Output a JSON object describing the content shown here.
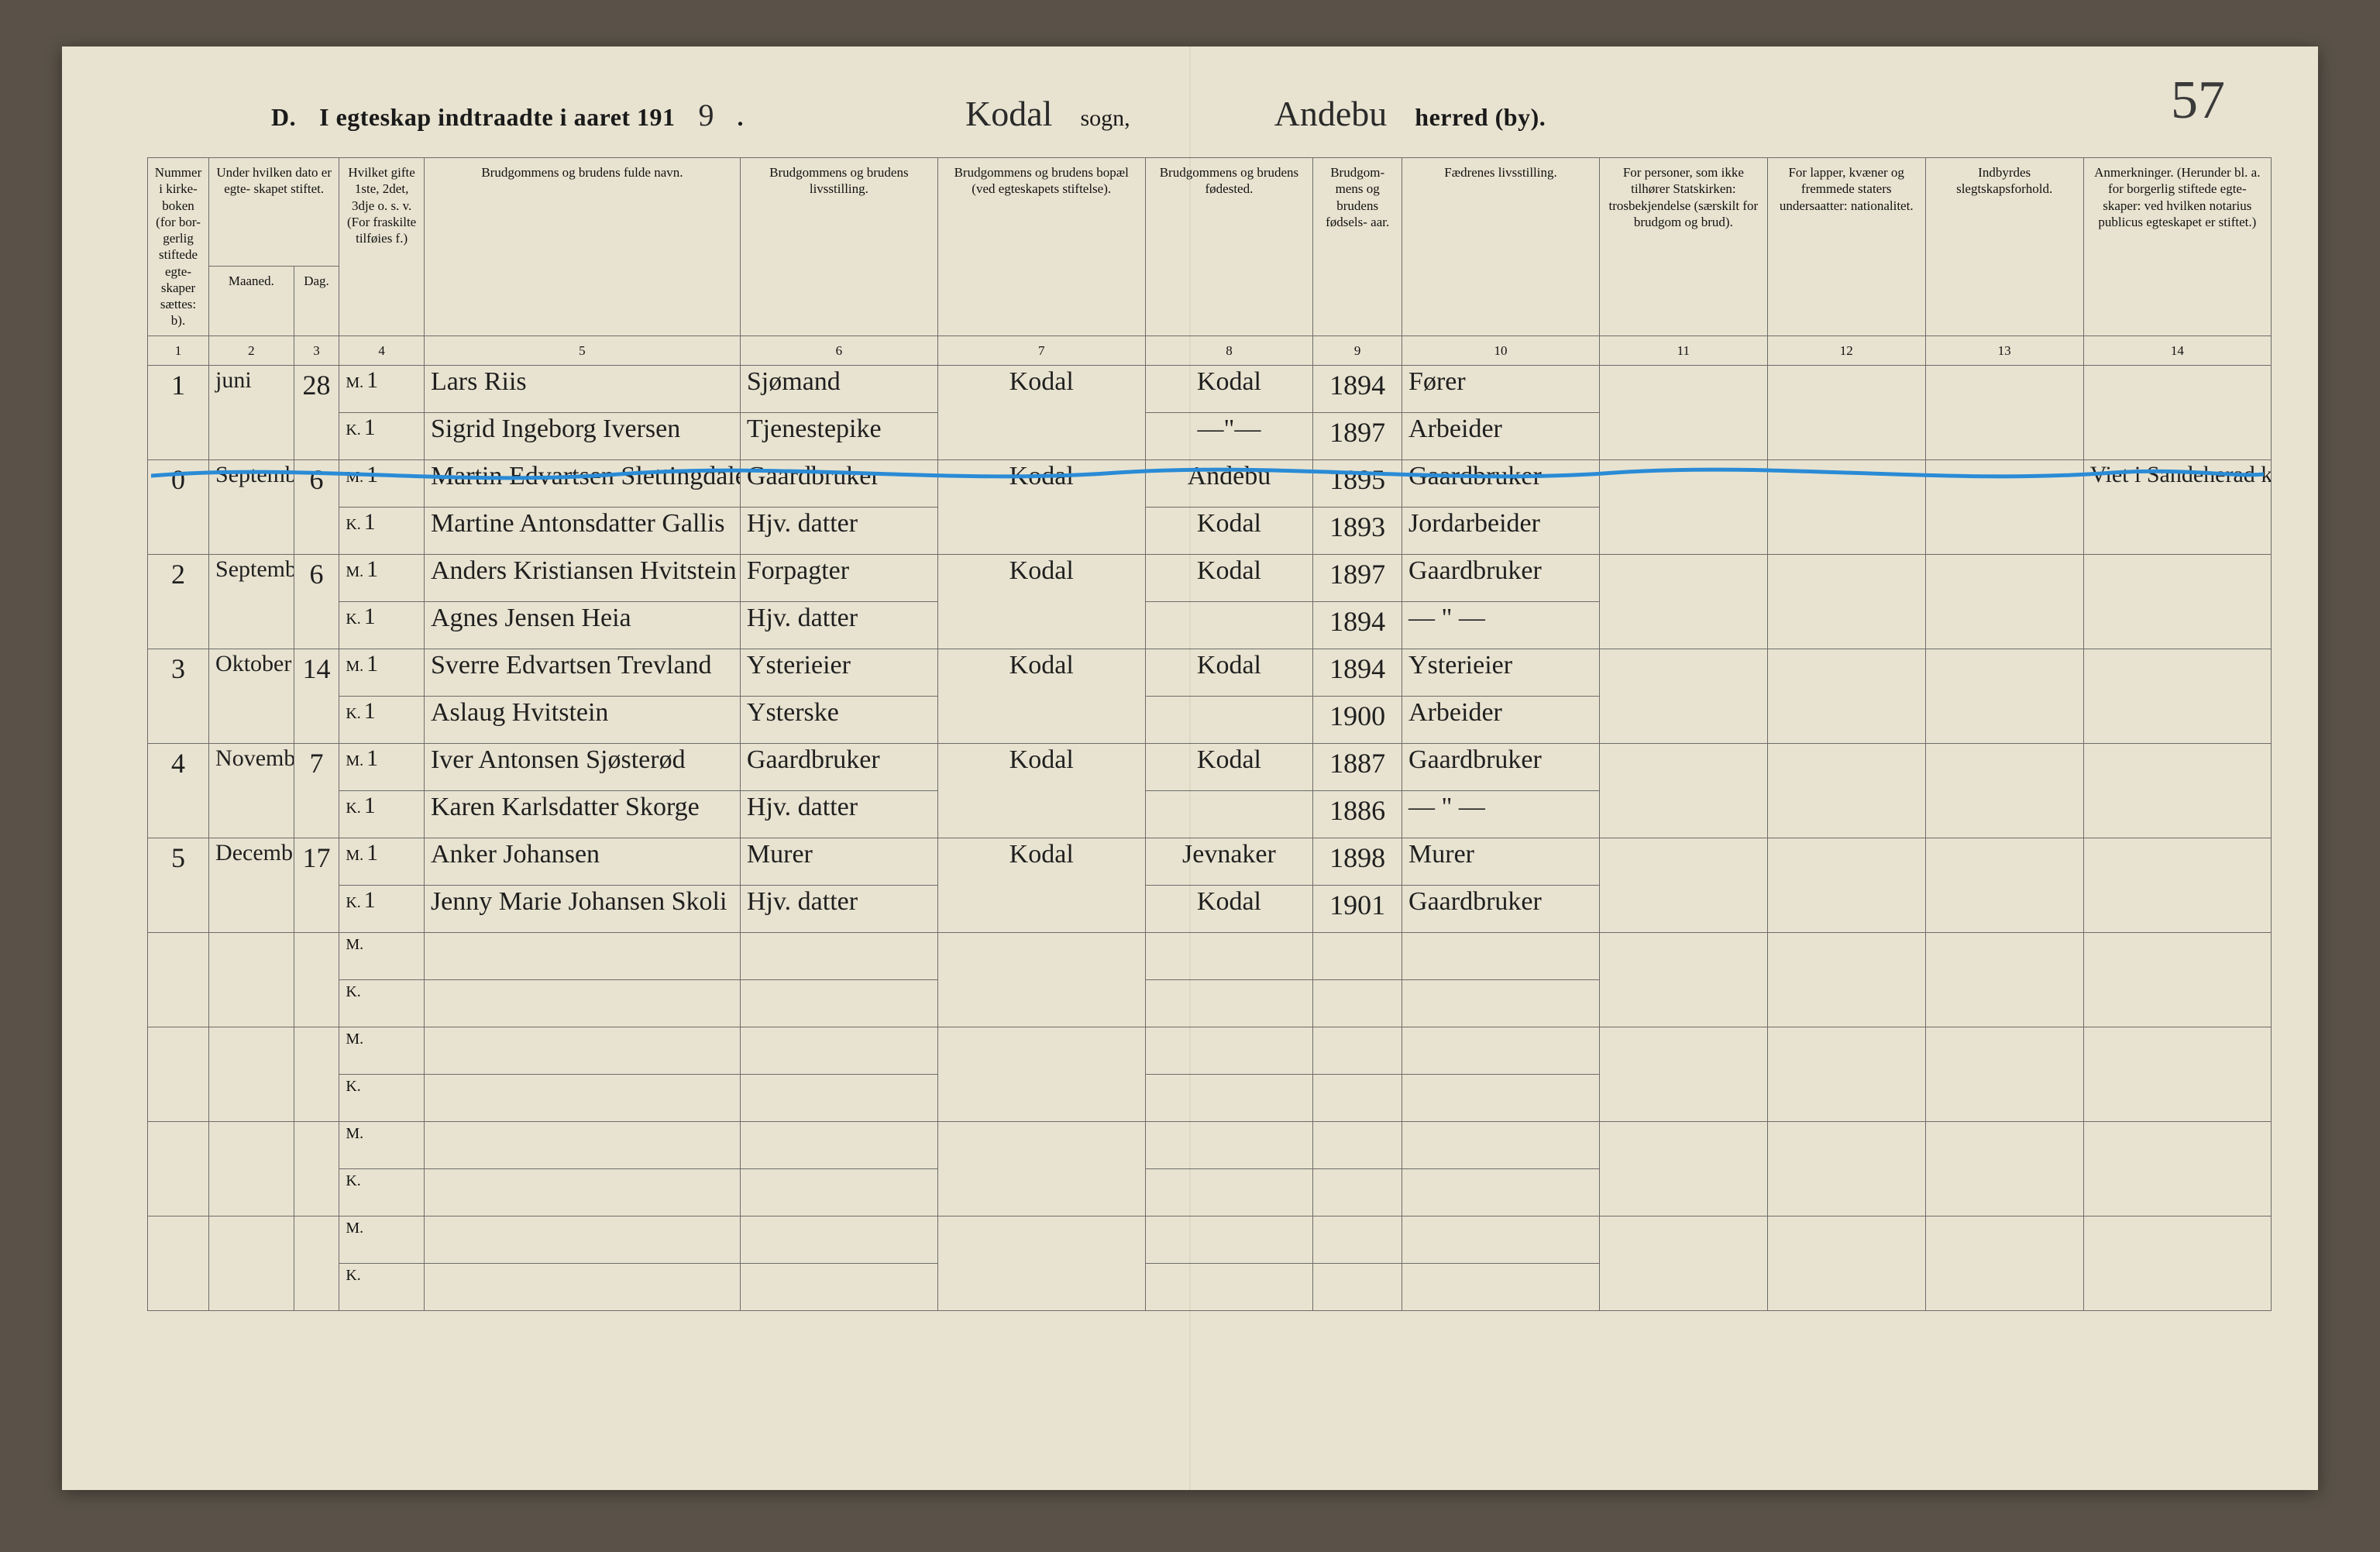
{
  "page_number_handwritten": "57",
  "heading": {
    "prefix_letter": "D.",
    "line1_a": "I egteskap indtraadte i aaret 191",
    "year_last_digit": "9",
    "sogn_value": "Kodal",
    "sogn_label": "sogn,",
    "herred_value": "Andebu",
    "herred_label": "herred (by)."
  },
  "columns": {
    "c1": "Nummer i kirke- boken (for bor- gerlig stiftede egte- skaper sættes: b).",
    "c2_group": "Under hvilken dato er egte- skapet stiftet.",
    "c2a": "Maaned.",
    "c2b": "Dag.",
    "c4": "Hvilket gifte 1ste, 2det, 3dje o. s. v. (For fraskilte tilføies f.)",
    "c5": "Brudgommens og brudens fulde navn.",
    "c6": "Brudgommens og brudens livsstilling.",
    "c7": "Brudgommens og brudens bopæl (ved egteskapets stiftelse).",
    "c8": "Brudgommens og brudens fødested.",
    "c9": "Brudgom- mens og brudens fødsels- aar.",
    "c10": "Fædrenes livsstilling.",
    "c11": "For personer, som ikke tilhører Statskirken: trosbekjendelse (særskilt for brudgom og brud).",
    "c12": "For lapper, kvæner og fremmede staters undersaatter: nationalitet.",
    "c13": "Indbyrdes slegtskapsforhold.",
    "c14": "Anmerkninger. (Herunder bl. a. for borgerlig stiftede egte- skaper: ved hvilken notarius publicus egteskapet er stiftet.)"
  },
  "colnums": [
    "1",
    "2",
    "3",
    "4",
    "5",
    "6",
    "7",
    "8",
    "9",
    "10",
    "11",
    "12",
    "13",
    "14"
  ],
  "mk_labels": {
    "m": "M.",
    "k": "K."
  },
  "entries": [
    {
      "num": "1",
      "month": "juni",
      "day": "28",
      "groom": {
        "gifte": "1",
        "name": "Lars Riis",
        "occ": "Sjømand",
        "birthplace": "Kodal",
        "year": "1894",
        "father_occ": "Fører"
      },
      "bride": {
        "gifte": "1",
        "name": "Sigrid Ingeborg Iversen",
        "occ": "Tjenestepike",
        "birthplace": "—\"—",
        "year": "1897",
        "father_occ": "Arbeider"
      },
      "residence": "Kodal",
      "c14": ""
    },
    {
      "num": "0",
      "month": "September",
      "day": "6",
      "groom": {
        "gifte": "1",
        "name": "Martin Edvartsen Slettingdalen",
        "occ": "Gaardbruker",
        "birthplace": "Andebu",
        "year": "1895",
        "father_occ": "Gaardbruker"
      },
      "bride": {
        "gifte": "1",
        "name": "Martine Antonsdatter Gallis",
        "occ": "Hjv. datter",
        "birthplace": "Kodal",
        "year": "1893",
        "father_occ": "Jordarbeider"
      },
      "residence": "Kodal",
      "c14": "Viet i Sandeherad kirke",
      "struck": true
    },
    {
      "num": "2",
      "month": "September",
      "day": "6",
      "groom": {
        "gifte": "1",
        "name": "Anders Kristiansen Hvitstein",
        "occ": "Forpagter",
        "birthplace": "Kodal",
        "year": "1897",
        "father_occ": "Gaardbruker"
      },
      "bride": {
        "gifte": "1",
        "name": "Agnes Jensen Heia",
        "occ": "Hjv. datter",
        "birthplace": "",
        "year": "1894",
        "father_occ": "— \" —"
      },
      "residence": "Kodal",
      "c14": ""
    },
    {
      "num": "3",
      "month": "Oktober",
      "day": "14",
      "groom": {
        "gifte": "1",
        "name": "Sverre Edvartsen Trevland",
        "occ": "Ysterieier",
        "birthplace": "Kodal",
        "year": "1894",
        "father_occ": "Ysterieier"
      },
      "bride": {
        "gifte": "1",
        "name": "Aslaug Hvitstein",
        "occ": "Ysterske",
        "birthplace": "",
        "year": "1900",
        "father_occ": "Arbeider"
      },
      "residence": "Kodal",
      "c14": ""
    },
    {
      "num": "4",
      "month": "November",
      "day": "7",
      "groom": {
        "gifte": "1",
        "name": "Iver Antonsen Sjøsterød",
        "occ": "Gaardbruker",
        "birthplace": "Kodal",
        "year": "1887",
        "father_occ": "Gaardbruker"
      },
      "bride": {
        "gifte": "1",
        "name": "Karen Karlsdatter Skorge",
        "occ": "Hjv. datter",
        "birthplace": "",
        "year": "1886",
        "father_occ": "— \" —"
      },
      "residence": "Kodal",
      "c14": ""
    },
    {
      "num": "5",
      "month": "December",
      "day": "17",
      "groom": {
        "gifte": "1",
        "name": "Anker Johansen",
        "occ": "Murer",
        "birthplace": "Jevnaker",
        "year": "1898",
        "father_occ": "Murer"
      },
      "bride": {
        "gifte": "1",
        "name": "Jenny Marie Johansen Skoli",
        "occ": "Hjv. datter",
        "birthplace": "Kodal",
        "year": "1901",
        "father_occ": "Gaardbruker"
      },
      "residence": "Kodal",
      "c14": ""
    }
  ],
  "blank_rows": 4,
  "style": {
    "paper_bg": "#e8e3d0",
    "ink": "#1f1f1f",
    "rule": "#6b6b6b",
    "subrule": "#bdb9a8",
    "blue_annotation": "#2a8bd6",
    "hand_font_size_pt": 26,
    "header_font_size_pt": 13,
    "heading_font_size_pt": 24
  }
}
